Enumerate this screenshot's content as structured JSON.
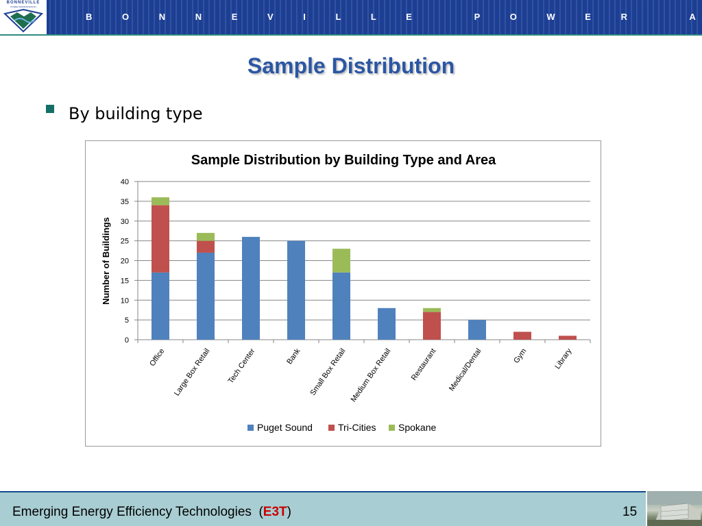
{
  "header": {
    "logo_text": "BONNEVILLE",
    "logo_subtext": "POWER ADMINISTRATION",
    "organization": "B O N N E V I L L E   P O W E R   A D M I N I S T R A T I O N",
    "colors": {
      "banner": "#1c3f94",
      "accent_line": "#2e8a83"
    },
    "logo_icon": "bpa-shield-logo"
  },
  "slide": {
    "title": "Sample Distribution",
    "bullet": "By building type",
    "bullet_icon": "square-bullet-icon",
    "colors": {
      "title": "#2b56a3",
      "bullet_marker": "#137066"
    }
  },
  "chart_data": {
    "type": "bar",
    "stacked": true,
    "title": "Sample Distribution by Building Type and Area",
    "xlabel": "",
    "ylabel": "Number of Buildings",
    "ylim": [
      0,
      40
    ],
    "yticks": [
      0,
      5,
      10,
      15,
      20,
      25,
      30,
      35,
      40
    ],
    "grid": true,
    "legend_position": "bottom",
    "categories": [
      "Office",
      "Large Box Retail",
      "Tech Center",
      "Bank",
      "Small Box Retail",
      "Medium Box Retail",
      "Restaurant",
      "Medical/Dental",
      "Gym",
      "Library"
    ],
    "series": [
      {
        "name": "Puget Sound",
        "color": "#4f81bd",
        "values": [
          17,
          22,
          26,
          25,
          17,
          8,
          0,
          5,
          0,
          0
        ]
      },
      {
        "name": "Tri-Cities",
        "color": "#c0504d",
        "values": [
          17,
          3,
          0,
          0,
          0,
          0,
          7,
          0,
          2,
          1
        ]
      },
      {
        "name": "Spokane",
        "color": "#9bbb59",
        "values": [
          2,
          2,
          0,
          0,
          6,
          0,
          1,
          0,
          0,
          0
        ]
      }
    ]
  },
  "footer": {
    "text": "Emerging Energy Efficiency Technologies",
    "open_paren": "(",
    "acronym": "E3T",
    "close_paren": ")",
    "page_number": "15",
    "colors": {
      "background": "#a8cdd2",
      "acronym": "#cc0000"
    },
    "image_icon": "building-photo"
  }
}
